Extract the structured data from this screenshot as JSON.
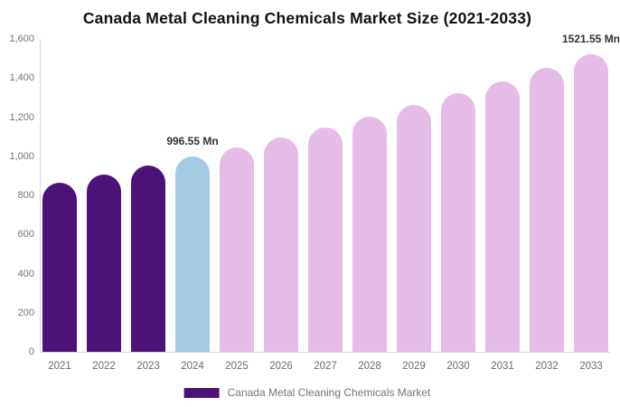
{
  "chart_data": {
    "type": "bar",
    "title": "Canada Metal Cleaning Chemicals Market Size (2021-2033)",
    "xlabel": "",
    "ylabel": "",
    "unit": "Mn",
    "categories": [
      "2021",
      "2022",
      "2023",
      "2024",
      "2025",
      "2026",
      "2027",
      "2028",
      "2029",
      "2030",
      "2031",
      "2032",
      "2033"
    ],
    "values": [
      865.6,
      907.2,
      950.9,
      996.55,
      1044.4,
      1094.6,
      1147.2,
      1202.4,
      1260.2,
      1320.8,
      1384.3,
      1450.9,
      1521.55
    ],
    "ylim": [
      0,
      1600
    ],
    "ytick_step": 200,
    "ytick_labels": [
      "0",
      "200",
      "400",
      "600",
      "800",
      "1,000",
      "1,200",
      "1,400",
      "1,600"
    ],
    "grid": false,
    "legend_position": "bottom",
    "legend": {
      "label": "Canada Metal Cleaning Chemicals Market",
      "swatch_color": "#4C1277"
    },
    "annotations": [
      {
        "category": "2024",
        "label": "996.55 Mn"
      },
      {
        "category": "2033",
        "label": "1521.55 Mn"
      }
    ],
    "bar_color_keys": [
      "historical",
      "historical",
      "historical",
      "current",
      "forecast",
      "forecast",
      "forecast",
      "forecast",
      "forecast",
      "forecast",
      "forecast",
      "forecast",
      "forecast"
    ]
  },
  "colors": {
    "historical": "#4C1277",
    "current": "#A5CBE2",
    "forecast": "#E5BCE8",
    "axis_line": "#d9d9d9",
    "tick_label": "#757575",
    "data_label": "#333333",
    "title": "#111111"
  }
}
